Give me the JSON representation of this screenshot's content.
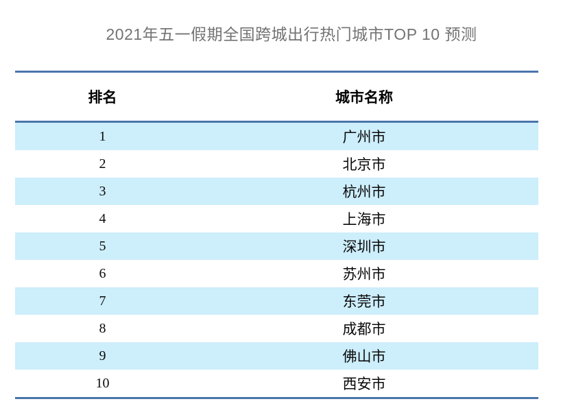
{
  "title": "2021年五一假期全国跨城出行热门城市TOP 10 预测",
  "colors": {
    "accent_line": "#4a74ab",
    "row_stripe": "#cdeefb",
    "title_text": "#737373",
    "body_text": "#000000"
  },
  "chart_data": {
    "type": "table",
    "title": "2021年五一假期全国跨城出行热门城市TOP 10 预测",
    "columns": [
      "排名",
      "城市名称"
    ],
    "rows": [
      [
        "1",
        "广州市"
      ],
      [
        "2",
        "北京市"
      ],
      [
        "3",
        "杭州市"
      ],
      [
        "4",
        "上海市"
      ],
      [
        "5",
        "深圳市"
      ],
      [
        "6",
        "苏州市"
      ],
      [
        "7",
        "东莞市"
      ],
      [
        "8",
        "成都市"
      ],
      [
        "9",
        "佛山市"
      ],
      [
        "10",
        "西安市"
      ]
    ],
    "stripe_pattern": "odd-rows-highlighted",
    "legend_position": "none"
  }
}
